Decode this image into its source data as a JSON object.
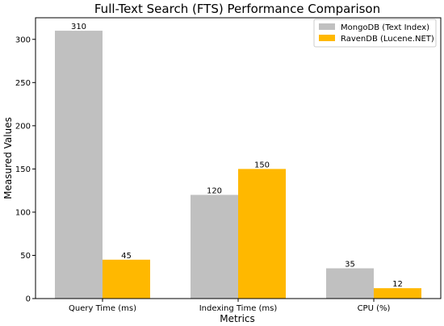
{
  "chart_data": {
    "type": "bar",
    "title": "Full-Text Search (FTS) Performance Comparison",
    "xlabel": "Metrics",
    "ylabel": "Measured Values",
    "categories": [
      "Query Time (ms)",
      "Indexing Time (ms)",
      "CPU (%)"
    ],
    "series": [
      {
        "name": "MongoDB (Text Index)",
        "values": [
          310,
          120,
          35
        ],
        "color": "#c0c0c0"
      },
      {
        "name": "RavenDB (Lucene.NET)",
        "values": [
          45,
          150,
          12
        ],
        "color": "#ffb800"
      }
    ],
    "ylim": [
      0,
      325
    ],
    "yticks": [
      0,
      50,
      100,
      150,
      200,
      250,
      300
    ],
    "grid": false,
    "legend": "top-right"
  }
}
